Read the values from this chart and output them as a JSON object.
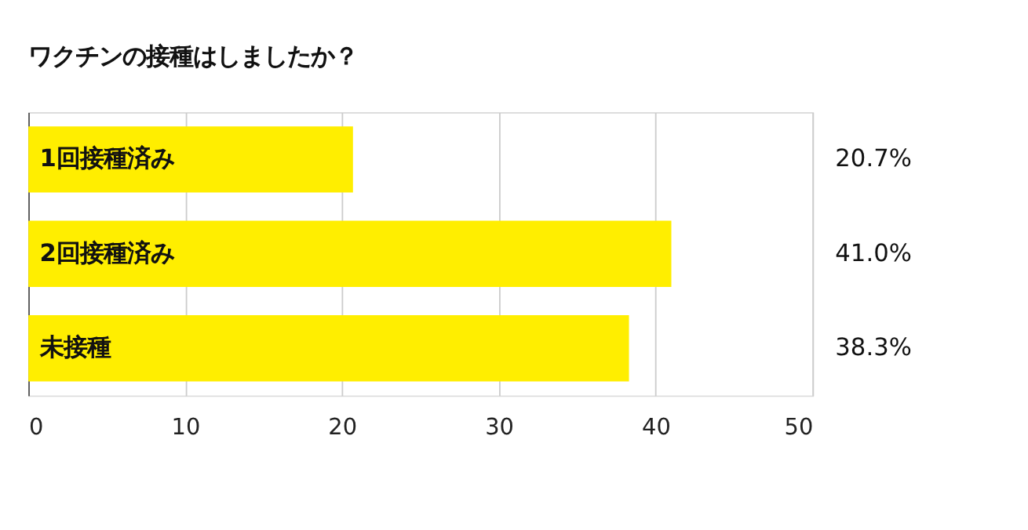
{
  "chart_data": {
    "type": "bar",
    "orientation": "horizontal",
    "title": "ワクチンの接種はしましたか？",
    "categories": [
      "1回接種済み",
      "2回接種済み",
      "未接種"
    ],
    "values": [
      20.7,
      41.0,
      38.3
    ],
    "value_labels": [
      "20.7%",
      "41.0%",
      "38.3%"
    ],
    "color": "#ffee00",
    "xlim": [
      0,
      50
    ],
    "xticks": [
      0,
      10,
      20,
      30,
      40,
      50
    ],
    "grid": "x"
  }
}
